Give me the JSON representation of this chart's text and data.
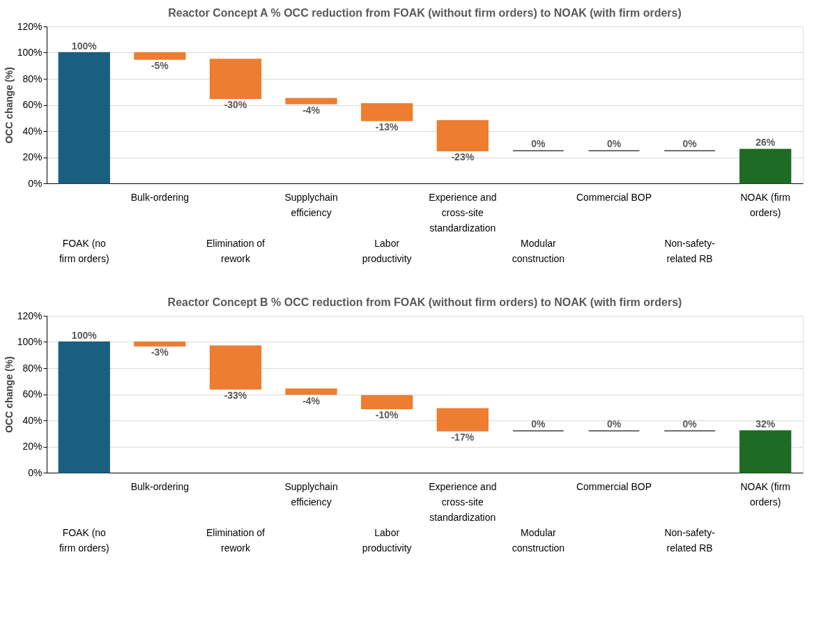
{
  "chart_data": [
    {
      "type": "bar",
      "title": "Reactor Concept A % OCC reduction from FOAK (without firm orders) to NOAK (with firm orders)",
      "ylabel": "OCC change (%)",
      "categories": [
        "FOAK (no\nfirm orders)",
        "Bulk-ordering",
        "Elimination of\nrework",
        "Supplychain\nefficiency",
        "Labor\nproductivity",
        "Experience and\ncross-site\nstandardization",
        "Modular\nconstruction",
        "Commercial BOP",
        "Non-safety-\nrelated RB",
        "NOAK (firm\norders)"
      ],
      "values": [
        100,
        -5,
        -30,
        -4,
        -13,
        -23,
        0,
        0,
        0,
        26
      ],
      "base": [
        0,
        100,
        95,
        65,
        61,
        48,
        25,
        25,
        25,
        0
      ],
      "colors": [
        "#1a5e80",
        "#ed7d31",
        "#ed7d31",
        "#ed7d31",
        "#ed7d31",
        "#ed7d31",
        "#404040",
        "#404040",
        "#404040",
        "#1e6b24"
      ],
      "value_labels": [
        "100%",
        "-5%",
        "-30%",
        "-4%",
        "-13%",
        "-23%",
        "0%",
        "0%",
        "0%",
        "26%"
      ],
      "ylim": [
        0,
        120
      ],
      "yticks": [
        {
          "value": 0,
          "label": "0%"
        },
        {
          "value": 20,
          "label": "20%"
        },
        {
          "value": 40,
          "label": "40%"
        },
        {
          "value": 60,
          "label": "60%"
        },
        {
          "value": 80,
          "label": "80%"
        },
        {
          "value": 100,
          "label": "100%"
        },
        {
          "value": 120,
          "label": "120%"
        }
      ],
      "grid": "y"
    },
    {
      "type": "bar",
      "title": "Reactor Concept B % OCC reduction from FOAK (without firm orders) to NOAK (with firm orders)",
      "ylabel": "OCC change (%)",
      "categories": [
        "FOAK (no\nfirm orders)",
        "Bulk-ordering",
        "Elimination of\nrework",
        "Supplychain\nefficiency",
        "Labor\nproductivity",
        "Experience and\ncross-site\nstandardization",
        "Modular\nconstruction",
        "Commercial BOP",
        "Non-safety-\nrelated RB",
        "NOAK (firm\norders)"
      ],
      "values": [
        100,
        -3,
        -33,
        -4,
        -10,
        -17,
        0,
        0,
        0,
        32
      ],
      "base": [
        0,
        100,
        97,
        64,
        59,
        49,
        32,
        32,
        32,
        0
      ],
      "colors": [
        "#1a5e80",
        "#ed7d31",
        "#ed7d31",
        "#ed7d31",
        "#ed7d31",
        "#ed7d31",
        "#404040",
        "#404040",
        "#404040",
        "#1e6b24"
      ],
      "value_labels": [
        "100%",
        "-3%",
        "-33%",
        "-4%",
        "-10%",
        "-17%",
        "0%",
        "0%",
        "0%",
        "32%"
      ],
      "ylim": [
        0,
        120
      ],
      "yticks": [
        {
          "value": 0,
          "label": "0%"
        },
        {
          "value": 20,
          "label": "20%"
        },
        {
          "value": 40,
          "label": "40%"
        },
        {
          "value": 60,
          "label": "60%"
        },
        {
          "value": 80,
          "label": "80%"
        },
        {
          "value": 100,
          "label": "100%"
        },
        {
          "value": 120,
          "label": "120%"
        }
      ],
      "grid": "y"
    }
  ]
}
